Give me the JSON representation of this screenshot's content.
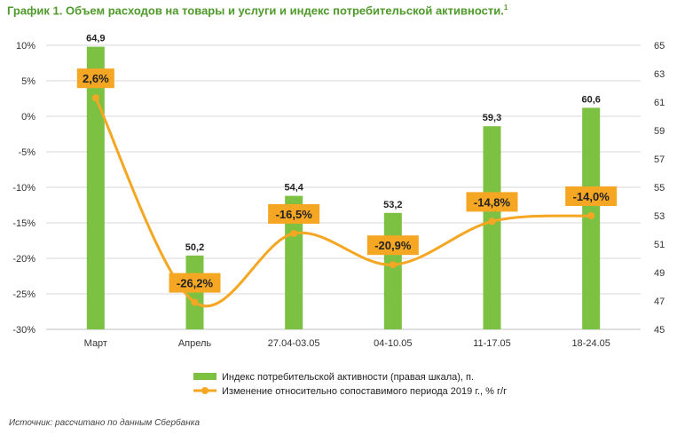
{
  "title": "График 1. Объем расходов на товары и услуги и индекс потребительской активности.",
  "title_note": "1",
  "source": "Источник: рассчитано по данным Сбербанка",
  "chart_data": {
    "type": "bar",
    "categories": [
      "Март",
      "Апрель",
      "27.04-03.05",
      "04-10.05",
      "11-17.05",
      "18-24.05"
    ],
    "series": [
      {
        "name": "Индекс потребительской активности (правая шкала), п.",
        "type": "bar",
        "axis": "right",
        "color": "#7DC142",
        "values": [
          64.9,
          50.2,
          54.4,
          53.2,
          59.3,
          60.6
        ],
        "labels": [
          "64,9",
          "50,2",
          "54,4",
          "53,2",
          "59,3",
          "60,6"
        ]
      },
      {
        "name": "Изменение относительно сопоставимого периода 2019 г., % г/г",
        "type": "line",
        "axis": "left",
        "color": "#F5A623",
        "values": [
          2.6,
          -26.2,
          -16.5,
          -20.9,
          -14.8,
          -14.0
        ],
        "labels": [
          "2,6%",
          "-26,2%",
          "-16,5%",
          "-20,9%",
          "-14,8%",
          "-14,0%"
        ]
      }
    ],
    "y_left": {
      "min": -30,
      "max": 10,
      "step": 5,
      "ticks": [
        "10%",
        "5%",
        "0%",
        "-5%",
        "-10%",
        "-15%",
        "-20%",
        "-25%",
        "-30%"
      ]
    },
    "y_right": {
      "min": 45,
      "max": 65,
      "step": 2,
      "ticks": [
        "65",
        "63",
        "61",
        "59",
        "57",
        "55",
        "53",
        "51",
        "49",
        "47",
        "45"
      ]
    },
    "grid": true,
    "legend_position": "bottom"
  }
}
